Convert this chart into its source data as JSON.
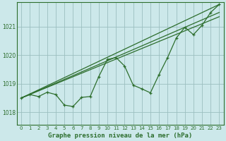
{
  "title": "Graphe pression niveau de la mer (hPa)",
  "bg_color": "#cce8ea",
  "grid_color": "#9bbfbf",
  "line_color": "#2d6e2d",
  "x_ticks": [
    0,
    1,
    2,
    3,
    4,
    5,
    6,
    7,
    8,
    9,
    10,
    11,
    12,
    13,
    14,
    15,
    16,
    17,
    18,
    19,
    20,
    21,
    22,
    23
  ],
  "y_ticks": [
    1018,
    1019,
    1020,
    1021
  ],
  "ylim": [
    1017.55,
    1021.85
  ],
  "xlim": [
    -0.5,
    23.5
  ],
  "main_data": [
    1018.5,
    1018.62,
    1018.55,
    1018.7,
    1018.62,
    1018.25,
    1018.2,
    1018.52,
    1018.55,
    1019.25,
    1019.85,
    1019.92,
    1019.62,
    1018.95,
    1018.82,
    1018.68,
    1019.32,
    1019.92,
    1020.6,
    1020.98,
    1020.72,
    1021.05,
    1021.5,
    1021.78
  ],
  "trend1_y0": 1018.5,
  "trend1_y1": 1021.78,
  "trend2_y0": 1018.5,
  "trend2_y1": 1021.5,
  "trend3_y0": 1018.5,
  "trend3_y1": 1021.35
}
